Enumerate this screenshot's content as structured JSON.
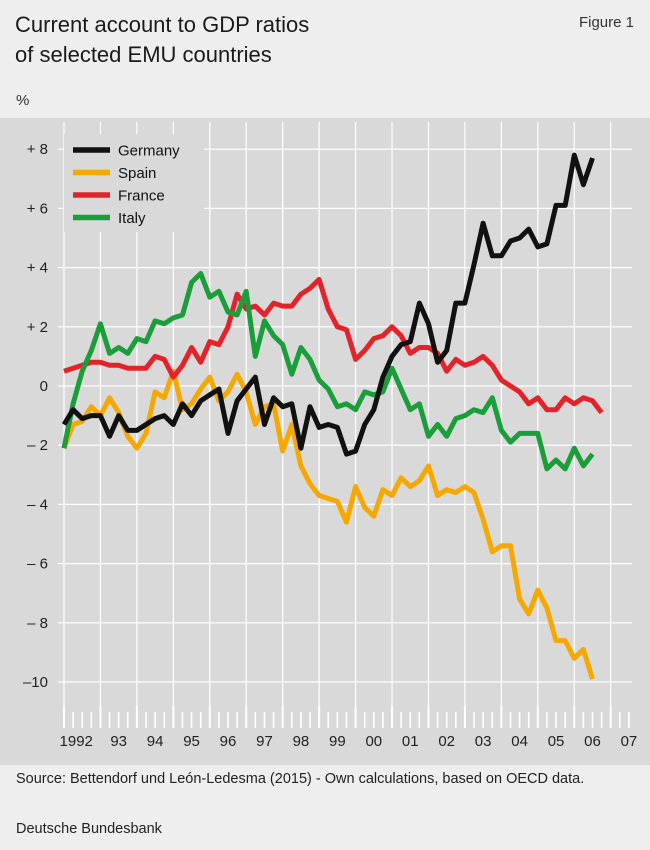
{
  "header": {
    "title_line1": "Current account to GDP ratios",
    "title_line2": "of selected EMU countries",
    "figure_label": "Figure 1",
    "unit": "%"
  },
  "footer": {
    "source": "Source: Bettendorf und León-Ledesma (2015) - Own calculations, based on OECD data.",
    "credit": "Deutsche Bundesbank"
  },
  "colors": {
    "plot_bg": "#d9d9d9",
    "grid": "#ffffff",
    "germany": "#111111",
    "spain": "#f5a800",
    "france": "#e2232a",
    "italy": "#1a9e3a"
  },
  "chart_data": {
    "type": "line",
    "title": "Current account to GDP ratios of selected EMU countries",
    "xlabel": "",
    "ylabel": "%",
    "ylim": [
      -11,
      9
    ],
    "xlim": [
      1992.0,
      2008.0
    ],
    "grid": true,
    "legend_position": "top-left",
    "y_ticks": [
      {
        "value": 8,
        "label": "+ 8"
      },
      {
        "value": 6,
        "label": "+ 6"
      },
      {
        "value": 4,
        "label": "+ 4"
      },
      {
        "value": 2,
        "label": "+ 2"
      },
      {
        "value": 0,
        "label": "0"
      },
      {
        "value": -2,
        "label": "– 2"
      },
      {
        "value": -4,
        "label": "– 4"
      },
      {
        "value": -6,
        "label": "– 6"
      },
      {
        "value": -8,
        "label": "– 8"
      },
      {
        "value": -10,
        "label": "–10"
      }
    ],
    "x_tick_labels": [
      "1992",
      "93",
      "94",
      "95",
      "96",
      "97",
      "98",
      "99",
      "00",
      "01",
      "02",
      "03",
      "04",
      "05",
      "06",
      "07"
    ],
    "start": 1992.0,
    "step": 0.25,
    "series": [
      {
        "name": "Germany",
        "color": "#111111",
        "values": [
          -1.3,
          -0.8,
          -1.1,
          -1.0,
          -1.0,
          -1.7,
          -1.0,
          -1.5,
          -1.5,
          -1.3,
          -1.1,
          -1.0,
          -1.3,
          -0.6,
          -1.0,
          -0.5,
          -0.3,
          -0.1,
          -1.6,
          -0.5,
          -0.1,
          0.3,
          -1.3,
          -0.4,
          -0.7,
          -0.6,
          -2.1,
          -0.7,
          -1.4,
          -1.3,
          -1.4,
          -2.3,
          -2.2,
          -1.3,
          -0.8,
          0.3,
          1.0,
          1.4,
          1.5,
          2.8,
          2.1,
          0.8,
          1.2,
          2.8,
          2.8,
          4.1,
          5.5,
          4.4,
          4.4,
          4.9,
          5.0,
          5.3,
          4.7,
          4.8,
          6.1,
          6.1,
          7.8,
          6.8,
          7.7
        ]
      },
      {
        "name": "Spain",
        "color": "#f5a800",
        "values": [
          -2.1,
          -1.3,
          -1.2,
          -0.7,
          -1.0,
          -0.4,
          -0.9,
          -1.7,
          -2.1,
          -1.6,
          -0.2,
          -0.4,
          0.5,
          -0.8,
          -0.6,
          -0.1,
          0.3,
          -0.5,
          -0.2,
          0.4,
          -0.2,
          -1.3,
          -0.7,
          -0.6,
          -2.2,
          -1.3,
          -2.7,
          -3.3,
          -3.7,
          -3.8,
          -3.9,
          -4.6,
          -3.4,
          -4.1,
          -4.4,
          -3.5,
          -3.7,
          -3.1,
          -3.4,
          -3.2,
          -2.7,
          -3.7,
          -3.5,
          -3.6,
          -3.4,
          -3.6,
          -4.5,
          -5.6,
          -5.4,
          -5.4,
          -7.2,
          -7.7,
          -6.9,
          -7.5,
          -8.6,
          -8.6,
          -9.2,
          -8.9,
          -9.9
        ]
      },
      {
        "name": "France",
        "color": "#e2232a",
        "values": [
          0.5,
          0.6,
          0.7,
          0.8,
          0.8,
          0.7,
          0.7,
          0.6,
          0.6,
          0.6,
          1.0,
          0.9,
          0.3,
          0.7,
          1.3,
          0.8,
          1.5,
          1.4,
          2.0,
          3.1,
          2.6,
          2.7,
          2.4,
          2.8,
          2.7,
          2.7,
          3.1,
          3.3,
          3.6,
          2.6,
          2.0,
          1.9,
          0.9,
          1.2,
          1.6,
          1.7,
          2.0,
          1.7,
          1.1,
          1.3,
          1.3,
          1.1,
          0.5,
          0.9,
          0.7,
          0.8,
          1.0,
          0.7,
          0.2,
          0.0,
          -0.2,
          -0.6,
          -0.4,
          -0.8,
          -0.8,
          -0.4,
          -0.6,
          -0.4,
          -0.5,
          -0.9
        ]
      },
      {
        "name": "Italy",
        "color": "#1a9e3a",
        "values": [
          -2.1,
          -0.6,
          0.5,
          1.2,
          2.1,
          1.1,
          1.3,
          1.1,
          1.6,
          1.5,
          2.2,
          2.1,
          2.3,
          2.4,
          3.5,
          3.8,
          3.0,
          3.2,
          2.5,
          2.4,
          3.2,
          1.0,
          2.2,
          1.7,
          1.4,
          0.4,
          1.3,
          0.9,
          0.2,
          -0.1,
          -0.7,
          -0.6,
          -0.8,
          -0.2,
          -0.3,
          -0.2,
          0.6,
          -0.1,
          -0.8,
          -0.6,
          -1.7,
          -1.3,
          -1.7,
          -1.1,
          -1.0,
          -0.8,
          -0.9,
          -0.4,
          -1.5,
          -1.9,
          -1.6,
          -1.6,
          -1.6,
          -2.8,
          -2.5,
          -2.8,
          -2.1,
          -2.7,
          -2.3
        ]
      }
    ]
  }
}
